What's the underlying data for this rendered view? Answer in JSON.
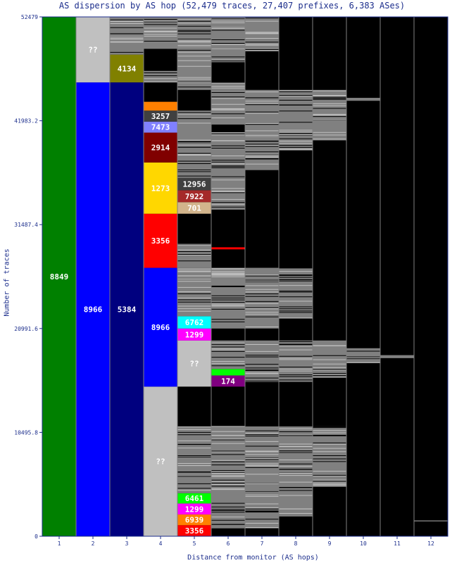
{
  "chart_data": {
    "type": "bar",
    "subtype": "stacked-column-treemap",
    "title": "AS dispersion by AS hop (52,479 traces, 27,407 prefixes, 6,383 ASes)",
    "xlabel": "Distance from monitor (AS hops)",
    "ylabel": "Number of traces",
    "ylim": [
      0,
      52479
    ],
    "y_ticks": [
      "0",
      "10495.8",
      "20991.6",
      "31487.4",
      "41983.2",
      "52479"
    ],
    "categories": [
      "1",
      "2",
      "3",
      "4",
      "5",
      "6",
      "7",
      "8",
      "9",
      "10",
      "11",
      "12"
    ],
    "colors": {
      "background": "#000000",
      "divider": "#808080",
      "axis_text": "#1c2e8c",
      "unknown": "#c0c0c0",
      "fragment": "#808080",
      "label_text": "#ffffff"
    },
    "columns": [
      {
        "hop": "1",
        "segments": [
          {
            "label": "8849",
            "start": 0,
            "end": 52479,
            "color": "#008000"
          }
        ]
      },
      {
        "hop": "2",
        "segments": [
          {
            "label": "8966",
            "start": 0,
            "end": 45860,
            "color": "#0000ff"
          },
          {
            "label": "??",
            "start": 45860,
            "end": 52479,
            "color": "#c0c0c0"
          }
        ]
      },
      {
        "hop": "3",
        "segments": [
          {
            "label": "5384",
            "start": 0,
            "end": 45860,
            "color": "#00007f"
          },
          {
            "label": "4134",
            "start": 45860,
            "end": 48665,
            "color": "#808000"
          },
          {
            "label": "",
            "start": 48665,
            "end": 52479,
            "color": "#808080"
          }
        ]
      },
      {
        "hop": "4",
        "segments": [
          {
            "label": "??",
            "start": 0,
            "end": 15120,
            "color": "#c0c0c0"
          },
          {
            "label": "8966",
            "start": 15120,
            "end": 27125,
            "color": "#0000ff"
          },
          {
            "label": "3356",
            "start": 27125,
            "end": 32590,
            "color": "#ff0000"
          },
          {
            "label": "1273",
            "start": 32590,
            "end": 37770,
            "color": "#ffd700"
          },
          {
            "label": "2914",
            "start": 37770,
            "end": 40785,
            "color": "#800000"
          },
          {
            "label": "7473",
            "start": 40785,
            "end": 41900,
            "color": "#8080ff"
          },
          {
            "label": "3257",
            "start": 41900,
            "end": 43010,
            "color": "#404040"
          },
          {
            "label": "",
            "start": 43010,
            "end": 43900,
            "color": "#ff8000"
          },
          {
            "label": "",
            "start": 45860,
            "end": 47020,
            "color": "#808080"
          },
          {
            "label": "",
            "start": 49250,
            "end": 52479,
            "color": "#808080"
          }
        ]
      },
      {
        "hop": "5",
        "segments": [
          {
            "label": "3356",
            "start": 0,
            "end": 1120,
            "color": "#ff0000"
          },
          {
            "label": "6939",
            "start": 1120,
            "end": 2200,
            "color": "#ff8000"
          },
          {
            "label": "1299",
            "start": 2200,
            "end": 3310,
            "color": "#ff00ff"
          },
          {
            "label": "6461",
            "start": 3310,
            "end": 4350,
            "color": "#00ff00"
          },
          {
            "label": "??",
            "start": 15120,
            "end": 19780,
            "color": "#c0c0c0"
          },
          {
            "label": "1299",
            "start": 19780,
            "end": 20990,
            "color": "#ff00ff"
          },
          {
            "label": "6762",
            "start": 20990,
            "end": 22230,
            "color": "#00ffff"
          },
          {
            "label": "701",
            "start": 32590,
            "end": 33760,
            "color": "#d2b48c"
          },
          {
            "label": "7922",
            "start": 33760,
            "end": 34960,
            "color": "#a52a2a"
          },
          {
            "label": "12956",
            "start": 34960,
            "end": 36210,
            "color": "#404040"
          },
          {
            "label": "",
            "start": 4350,
            "end": 11100,
            "color": "#808080"
          },
          {
            "label": "",
            "start": 22230,
            "end": 27125,
            "color": "#808080"
          },
          {
            "label": "",
            "start": 27125,
            "end": 29600,
            "color": "#808080"
          },
          {
            "label": "",
            "start": 36210,
            "end": 43010,
            "color": "#808080"
          },
          {
            "label": "",
            "start": 45100,
            "end": 52479,
            "color": "#808080"
          }
        ]
      },
      {
        "hop": "6",
        "segments": [
          {
            "label": "174",
            "start": 15120,
            "end": 16250,
            "color": "#800080"
          },
          {
            "label": "",
            "start": 16250,
            "end": 16900,
            "color": "#00ff00"
          },
          {
            "label": "",
            "start": 16900,
            "end": 19780,
            "color": "#808080"
          },
          {
            "label": "",
            "start": 28990,
            "end": 29200,
            "color": "#ff0000"
          },
          {
            "label": "",
            "start": 800,
            "end": 11100,
            "color": "#808080"
          },
          {
            "label": "",
            "start": 20990,
            "end": 27125,
            "color": "#808080"
          },
          {
            "label": "",
            "start": 33000,
            "end": 40785,
            "color": "#808080"
          },
          {
            "label": "",
            "start": 41600,
            "end": 45860,
            "color": "#808080"
          },
          {
            "label": "",
            "start": 47900,
            "end": 52479,
            "color": "#808080"
          }
        ]
      },
      {
        "hop": "7",
        "segments": [
          {
            "label": "",
            "start": 800,
            "end": 11100,
            "color": "#808080"
          },
          {
            "label": "",
            "start": 15600,
            "end": 19780,
            "color": "#808080"
          },
          {
            "label": "",
            "start": 20990,
            "end": 27125,
            "color": "#808080"
          },
          {
            "label": "",
            "start": 37000,
            "end": 45100,
            "color": "#808080"
          },
          {
            "label": "",
            "start": 49000,
            "end": 52479,
            "color": "#808080"
          }
        ]
      },
      {
        "hop": "8",
        "segments": [
          {
            "label": "",
            "start": 2000,
            "end": 11100,
            "color": "#808080"
          },
          {
            "label": "",
            "start": 15600,
            "end": 19780,
            "color": "#808080"
          },
          {
            "label": "",
            "start": 22000,
            "end": 27125,
            "color": "#808080"
          },
          {
            "label": "",
            "start": 39000,
            "end": 45100,
            "color": "#808080"
          }
        ]
      },
      {
        "hop": "9",
        "segments": [
          {
            "label": "",
            "start": 5000,
            "end": 11100,
            "color": "#808080"
          },
          {
            "label": "",
            "start": 16000,
            "end": 19780,
            "color": "#808080"
          },
          {
            "label": "",
            "start": 40000,
            "end": 45100,
            "color": "#808080"
          }
        ]
      },
      {
        "hop": "10",
        "segments": [
          {
            "label": "",
            "start": 17500,
            "end": 19000,
            "color": "#808080"
          },
          {
            "label": "",
            "start": 44000,
            "end": 44300,
            "color": "#808080"
          }
        ]
      },
      {
        "hop": "11",
        "segments": [
          {
            "label": "",
            "start": 18000,
            "end": 18300,
            "color": "#808080"
          }
        ]
      },
      {
        "hop": "12",
        "segments": [
          {
            "label": "",
            "start": 1500,
            "end": 1600,
            "color": "#808080"
          }
        ]
      }
    ]
  }
}
